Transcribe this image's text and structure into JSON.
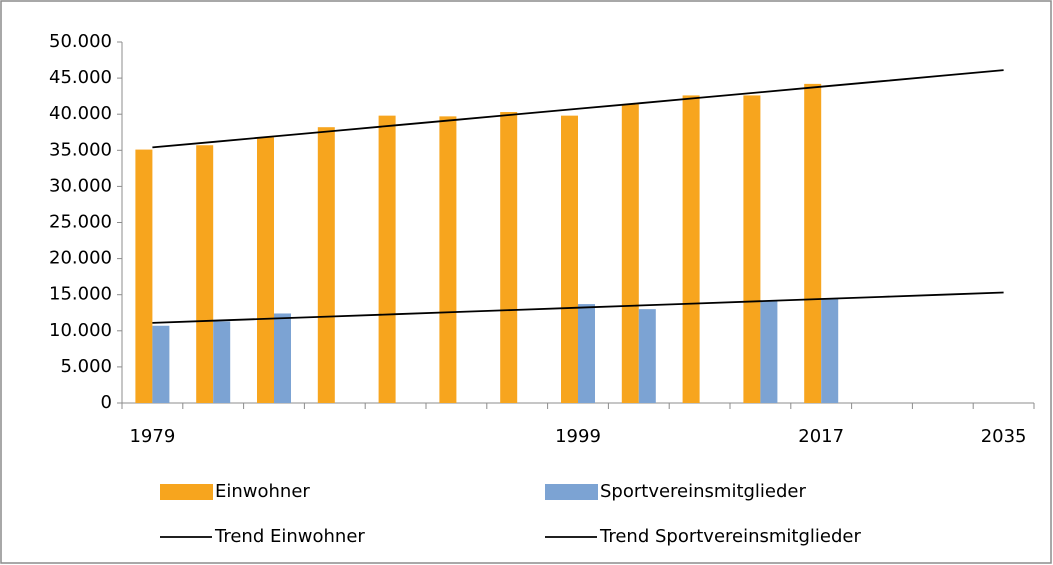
{
  "chart_data": {
    "type": "bar",
    "categories": [
      "1979",
      null,
      null,
      null,
      null,
      null,
      null,
      "1999",
      null,
      null,
      null,
      "2017",
      null,
      null,
      "2035"
    ],
    "series": [
      {
        "name": "Einwohner",
        "color": "#f7a51e",
        "values": [
          35100,
          35700,
          36800,
          38200,
          39800,
          39700,
          40300,
          39800,
          41400,
          42600,
          42600,
          44200,
          null,
          null,
          null
        ]
      },
      {
        "name": "Sportvereinsmitglieder",
        "color": "#7ca3d3",
        "values": [
          10700,
          11300,
          12400,
          null,
          null,
          null,
          null,
          13700,
          13000,
          null,
          14200,
          14500,
          null,
          null,
          null
        ]
      },
      {
        "name": "Trend Einwohner",
        "type": "line",
        "color": "#000000",
        "values": [
          35400,
          36160,
          36930,
          37690,
          38460,
          39220,
          39990,
          40750,
          41510,
          42280,
          43040,
          43810,
          44570,
          45340,
          46100
        ]
      },
      {
        "name": "Trend Sportvereinsmitglieder",
        "type": "line",
        "color": "#000000",
        "values": [
          11100,
          11400,
          11700,
          12000,
          12300,
          12600,
          12900,
          13200,
          13500,
          13800,
          14100,
          14400,
          14700,
          15000,
          15300
        ]
      }
    ],
    "ylim": [
      0,
      50000
    ],
    "yticks": [
      0,
      {
        "value": 5000,
        "label": "5.000"
      },
      {
        "value": 10000,
        "label": "10.000"
      },
      {
        "value": 15000,
        "label": "15.000"
      },
      {
        "value": 20000,
        "label": "20.000"
      },
      {
        "value": 25000,
        "label": "25.000"
      },
      {
        "value": 30000,
        "label": "30.000"
      },
      {
        "value": 35000,
        "label": "35.000"
      },
      {
        "value": 40000,
        "label": "40.000"
      },
      {
        "value": 45000,
        "label": "45.000"
      },
      {
        "value": 50000,
        "label": "50.000"
      }
    ],
    "legend": "bottom"
  }
}
